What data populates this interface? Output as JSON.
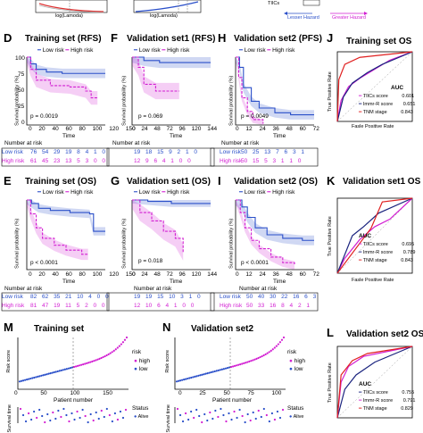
{
  "top": {
    "lamoda1": "log(Lamoda)",
    "lamoda2": "log(Lamoda)",
    "tiics": "TIICs",
    "lesser": "Lesser Hazard",
    "greater": "Greater Hazard"
  },
  "km_common": {
    "low": "Low risk",
    "high": "High risk",
    "ylab": "Survival probability (%)",
    "nar": "Number at risk",
    "time": "Time",
    "lowlbl": "Low risk",
    "highlbl": "High risk"
  },
  "roc_common": {
    "auc": "AUC",
    "ylab": "True Positive Rate",
    "xlab": "Fasle Positive Rate",
    "r1": "TIICs score",
    "r2": "Immr-R score",
    "r3": "TNM stage"
  },
  "D": {
    "letter": "D",
    "title": "Training set (RFS)",
    "p": "p = 0.0019",
    "xticks": [
      "0",
      "20",
      "40",
      "60",
      "80",
      "100",
      "120",
      "150"
    ],
    "low_nar": "76  54  29  19  8  4  1  0",
    "high_nar": "61  45  23  13  5  3  0  0"
  },
  "F": {
    "letter": "F",
    "title": "Validation set1 (RFS)",
    "p": "p = 0.069",
    "xticks": [
      "0",
      "24",
      "48",
      "72",
      "96",
      "120",
      "144"
    ],
    "low_nar": "19  18  15  9  2  1  0",
    "high_nar": "12  9  6  4  1  0  0"
  },
  "H": {
    "letter": "H",
    "title": "Validation set2 (PFS)",
    "p": "p = 0.0049",
    "xticks": [
      "0",
      "12",
      "24",
      "36",
      "48",
      "60",
      "72"
    ],
    "low_nar": "50  25  13  7  6  3  1",
    "high_nar": "50  15  5  3  1  1  0"
  },
  "J": {
    "letter": "J",
    "title": "Training set OS",
    "auc1": "0.601",
    "auc2": "0.651",
    "auc3": "0.843"
  },
  "E": {
    "letter": "E",
    "title": "Training set (OS)",
    "p": "p < 0.0001",
    "xticks": [
      "0",
      "20",
      "40",
      "60",
      "80",
      "100",
      "120",
      "150"
    ],
    "low_nar": "82  62  35  21  10  4  0  0",
    "high_nar": "81  47  19  11  5  2  0  0"
  },
  "G": {
    "letter": "G",
    "title": "Validation set1 (OS)",
    "p": "p = 0.018",
    "xticks": [
      "0",
      "24",
      "48",
      "72",
      "96",
      "120",
      "144"
    ],
    "low_nar": "19  19  15  10  3  1  0",
    "high_nar": "12  10  6  4  1  0  0"
  },
  "I": {
    "letter": "I",
    "title": "Validation set2 (OS)",
    "p": "p < 0.0001",
    "xticks": [
      "0",
      "12",
      "24",
      "36",
      "48",
      "60",
      "72"
    ],
    "low_nar": "50  40  30  22  16  6  3",
    "high_nar": "50  33  16  8  4  2  1"
  },
  "K": {
    "letter": "K",
    "title": "Validation set1 OS",
    "auc1": "0.695",
    "auc2": "0.789",
    "auc3": "0.843"
  },
  "M": {
    "letter": "M",
    "title": "Training set",
    "ylab": "Risk score",
    "xlab": "Patient number",
    "xticks": [
      "0",
      "50",
      "100",
      "150"
    ],
    "yticks": [
      "0",
      "1",
      "2",
      "3",
      "4"
    ],
    "legend_title": "risk",
    "high": "high",
    "low": "low",
    "status": "Status",
    "alive": "Alive",
    "ylab2": "Survival time"
  },
  "N": {
    "letter": "N",
    "title": "Validation set2",
    "ylab": "Risk score",
    "xlab": "Patient number",
    "xticks": [
      "0",
      "25",
      "50",
      "75",
      "100"
    ],
    "yticks": [
      "0",
      "1",
      "2",
      "3",
      "4"
    ],
    "legend_title": "risk",
    "high": "high",
    "low": "low",
    "status": "Status",
    "alive": "Alive",
    "ylab2": "Survival time"
  },
  "L": {
    "letter": "L",
    "title": "Validation set2 OS",
    "auc1": "0.755",
    "auc2": "0.791",
    "auc3": "0.829"
  },
  "colors": {
    "blue": "#2a4fc9",
    "magenta": "#d21ed2",
    "navy": "#1a237e",
    "red": "#e02020"
  }
}
